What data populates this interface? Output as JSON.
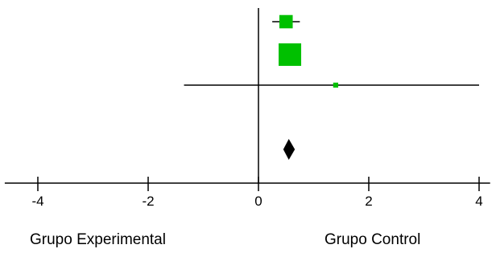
{
  "chart_data": {
    "type": "forest",
    "xlim": [
      -4.6,
      4.2
    ],
    "x_ticks": [
      -4,
      -2,
      0,
      2,
      4
    ],
    "tick_labels": [
      "-4",
      "-2",
      "0",
      "2",
      "4"
    ],
    "colors": {
      "study": "#00c000",
      "summary": "#000000",
      "axis": "#000000"
    },
    "studies": [
      {
        "estimate": 0.5,
        "ci_low": 0.25,
        "ci_high": 0.75,
        "weight": 0.35
      },
      {
        "estimate": 0.57,
        "ci_low": 0.57,
        "ci_high": 0.57,
        "weight": 1.0
      },
      {
        "estimate": 1.4,
        "ci_low": -1.35,
        "ci_high": 4.0,
        "weight": 0.05
      }
    ],
    "summary": {
      "estimate": 0.55,
      "ci_low": 0.45,
      "ci_high": 0.66
    },
    "side_labels": {
      "left": "Grupo Experimental",
      "right": "Grupo Control"
    }
  }
}
